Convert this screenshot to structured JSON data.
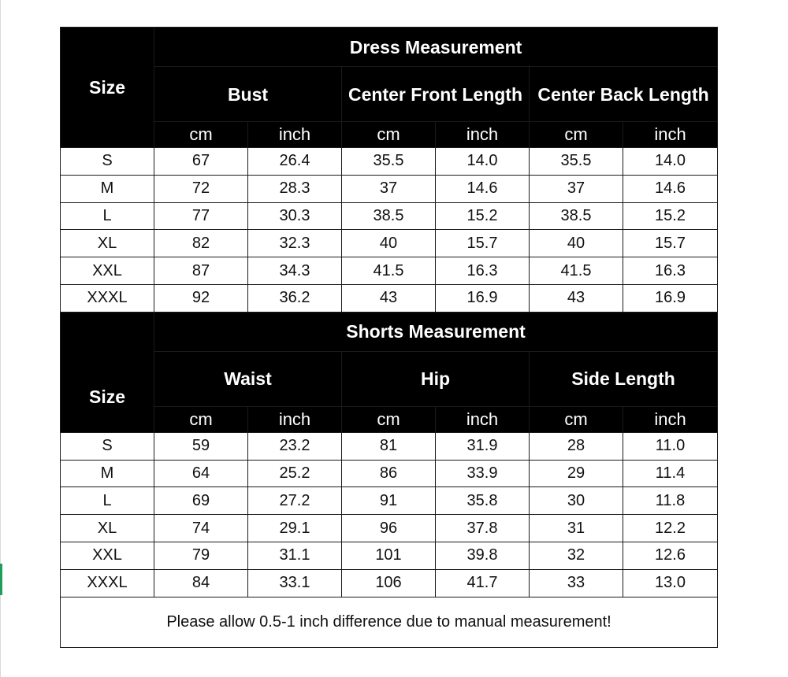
{
  "dress": {
    "size_label": "Size",
    "title": "Dress Measurement",
    "groups": [
      "Bust",
      "Center Front Length",
      "Center Back Length"
    ],
    "units": [
      "cm",
      "inch",
      "cm",
      "inch",
      "cm",
      "inch"
    ],
    "rows": [
      [
        "S",
        "67",
        "26.4",
        "35.5",
        "14.0",
        "35.5",
        "14.0"
      ],
      [
        "M",
        "72",
        "28.3",
        "37",
        "14.6",
        "37",
        "14.6"
      ],
      [
        "L",
        "77",
        "30.3",
        "38.5",
        "15.2",
        "38.5",
        "15.2"
      ],
      [
        "XL",
        "82",
        "32.3",
        "40",
        "15.7",
        "40",
        "15.7"
      ],
      [
        "XXL",
        "87",
        "34.3",
        "41.5",
        "16.3",
        "41.5",
        "16.3"
      ],
      [
        "XXXL",
        "92",
        "36.2",
        "43",
        "16.9",
        "43",
        "16.9"
      ]
    ]
  },
  "shorts": {
    "size_label": "Size",
    "title": "Shorts Measurement",
    "groups": [
      "Waist",
      "Hip",
      "Side Length"
    ],
    "units": [
      "cm",
      "inch",
      "cm",
      "inch",
      "cm",
      "inch"
    ],
    "rows": [
      [
        "S",
        "59",
        "23.2",
        "81",
        "31.9",
        "28",
        "11.0"
      ],
      [
        "M",
        "64",
        "25.2",
        "86",
        "33.9",
        "29",
        "11.4"
      ],
      [
        "L",
        "69",
        "27.2",
        "91",
        "35.8",
        "30",
        "11.8"
      ],
      [
        "XL",
        "74",
        "29.1",
        "96",
        "37.8",
        "31",
        "12.2"
      ],
      [
        "XXL",
        "79",
        "31.1",
        "101",
        "39.8",
        "32",
        "12.6"
      ],
      [
        "XXXL",
        "84",
        "33.1",
        "106",
        "41.7",
        "33",
        "13.0"
      ]
    ]
  },
  "note": "Please allow 0.5-1 inch difference due to manual measurement!",
  "colors": {
    "header_bg": "#000000",
    "header_text": "#ffffff",
    "border": "#1a1a1a",
    "accent_marker": "#1e9e5a"
  }
}
